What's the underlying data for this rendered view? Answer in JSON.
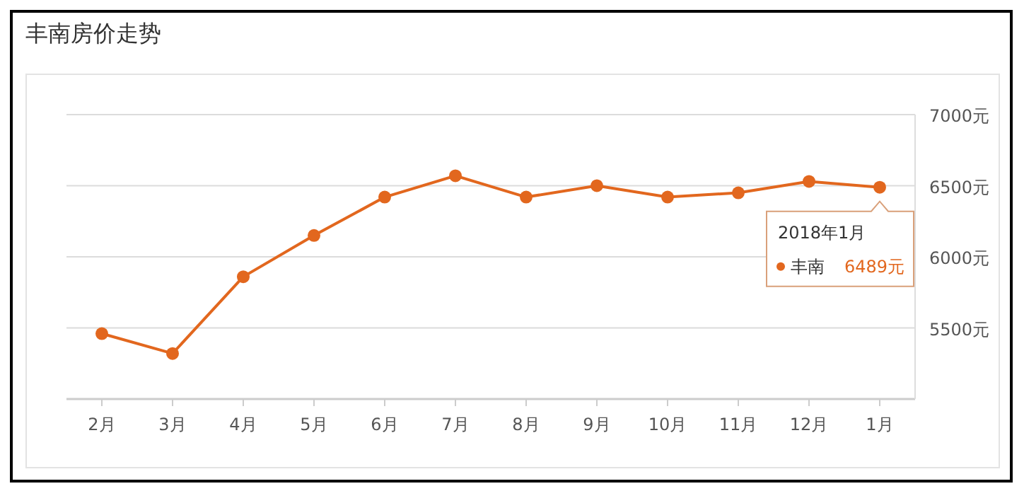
{
  "chart_data": {
    "type": "line",
    "title": "丰南房价走势",
    "categories": [
      "2月",
      "3月",
      "4月",
      "5月",
      "6月",
      "7月",
      "8月",
      "9月",
      "10月",
      "11月",
      "12月",
      "1月"
    ],
    "series": [
      {
        "name": "丰南",
        "color": "#e2671e",
        "values": [
          5460,
          5320,
          5860,
          6150,
          6420,
          6570,
          6420,
          6500,
          6420,
          6450,
          6530,
          6489
        ]
      }
    ],
    "annotations": [
      {
        "text": "2018年1月",
        "x": "1月",
        "y": 6489
      },
      "6489元"
    ],
    "ylim": [
      5000,
      7000
    ],
    "yticks": [
      {
        "value": 5500,
        "label": "5500元"
      },
      {
        "value": 6000,
        "label": "6000元"
      },
      {
        "value": 6500,
        "label": "6500元"
      },
      {
        "value": 7000,
        "label": "7000元"
      }
    ],
    "grid": "y",
    "marker": "circle",
    "line_style": "solid",
    "legend": "right"
  }
}
